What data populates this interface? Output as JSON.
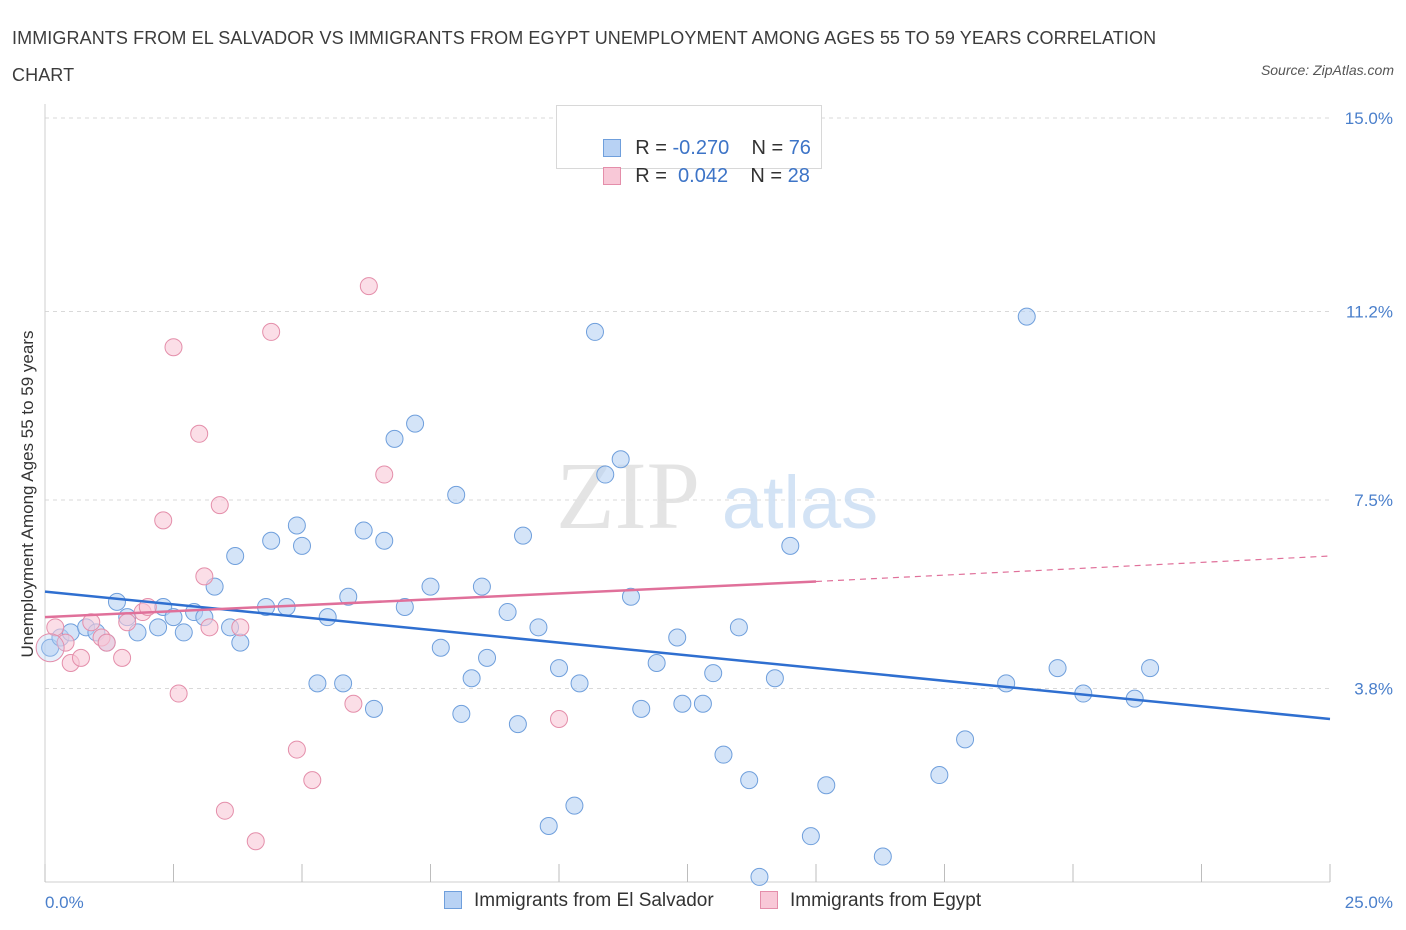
{
  "title": "IMMIGRANTS FROM EL SALVADOR VS IMMIGRANTS FROM EGYPT UNEMPLOYMENT AMONG AGES 55 TO 59 YEARS CORRELATION CHART",
  "source": "Source: ZipAtlas.com",
  "watermark": {
    "zip": "ZIP",
    "atlas": "atlas"
  },
  "legend": {
    "r_label": "R =",
    "n_label": "N =",
    "series1": {
      "r": "-0.270",
      "n": "76"
    },
    "series2": {
      "r": " 0.042",
      "n": "28"
    }
  },
  "colors": {
    "blue_fill": "#b8d2f4",
    "blue_stroke": "#6f9fdc",
    "blue_line": "#2f6fd0",
    "pink_fill": "#f8c8d7",
    "pink_stroke": "#e48eaa",
    "pink_line": "#e0709a",
    "grid": "#d9d9d9",
    "tick_text": "#4a7fcb"
  },
  "chart_data": {
    "type": "scatter",
    "title": "IMMIGRANTS FROM EL SALVADOR VS IMMIGRANTS FROM EGYPT UNEMPLOYMENT AMONG AGES 55 TO 59 YEARS CORRELATION CHART",
    "xlabel": "",
    "ylabel": "Unemployment Among Ages 55 to 59 years",
    "xlim": [
      0,
      25
    ],
    "ylim": [
      0,
      15
    ],
    "x_tick_labels": [
      "0.0%",
      "25.0%"
    ],
    "y_tick_labels": [
      "15.0%",
      "11.2%",
      "7.5%",
      "3.8%"
    ],
    "y_tick_values": [
      15.0,
      11.2,
      7.5,
      3.8
    ],
    "grid": true,
    "legend_position": "bottom-center",
    "series": [
      {
        "name": "Immigrants from El Salvador",
        "R": -0.27,
        "N": 76,
        "trend": {
          "x": [
            0,
            25
          ],
          "y": [
            5.7,
            3.2
          ]
        },
        "points": [
          [
            0.1,
            4.6
          ],
          [
            0.3,
            4.8
          ],
          [
            0.5,
            4.9
          ],
          [
            0.8,
            5.0
          ],
          [
            1.0,
            4.9
          ],
          [
            1.4,
            5.5
          ],
          [
            1.6,
            5.2
          ],
          [
            1.8,
            4.9
          ],
          [
            2.3,
            5.4
          ],
          [
            2.2,
            5.0
          ],
          [
            2.5,
            5.2
          ],
          [
            2.7,
            4.9
          ],
          [
            2.9,
            5.3
          ],
          [
            3.1,
            5.2
          ],
          [
            3.3,
            5.8
          ],
          [
            3.6,
            5.0
          ],
          [
            3.8,
            4.7
          ],
          [
            3.7,
            6.4
          ],
          [
            4.4,
            6.7
          ],
          [
            4.7,
            5.4
          ],
          [
            4.3,
            5.4
          ],
          [
            4.9,
            7.0
          ],
          [
            5.0,
            6.6
          ],
          [
            5.3,
            3.9
          ],
          [
            5.5,
            5.2
          ],
          [
            5.8,
            3.9
          ],
          [
            5.9,
            5.6
          ],
          [
            6.2,
            6.9
          ],
          [
            6.4,
            3.4
          ],
          [
            6.6,
            6.7
          ],
          [
            6.8,
            8.7
          ],
          [
            7.0,
            5.4
          ],
          [
            7.2,
            9.0
          ],
          [
            7.5,
            5.8
          ],
          [
            7.7,
            4.6
          ],
          [
            8.0,
            7.6
          ],
          [
            8.1,
            3.3
          ],
          [
            8.3,
            4.0
          ],
          [
            8.5,
            5.8
          ],
          [
            8.6,
            4.4
          ],
          [
            9.0,
            5.3
          ],
          [
            9.2,
            3.1
          ],
          [
            9.3,
            6.8
          ],
          [
            9.6,
            5.0
          ],
          [
            9.8,
            1.1
          ],
          [
            10.0,
            4.2
          ],
          [
            10.3,
            1.5
          ],
          [
            10.4,
            3.9
          ],
          [
            10.7,
            10.8
          ],
          [
            10.9,
            8.0
          ],
          [
            11.2,
            8.3
          ],
          [
            11.4,
            5.6
          ],
          [
            11.6,
            3.4
          ],
          [
            11.9,
            4.3
          ],
          [
            12.3,
            4.8
          ],
          [
            12.4,
            3.5
          ],
          [
            12.8,
            3.5
          ],
          [
            13.0,
            4.1
          ],
          [
            13.2,
            2.5
          ],
          [
            13.5,
            5.0
          ],
          [
            13.7,
            2.0
          ],
          [
            14.2,
            4.0
          ],
          [
            14.5,
            6.6
          ],
          [
            14.9,
            0.9
          ],
          [
            15.2,
            1.9
          ],
          [
            16.3,
            0.5
          ],
          [
            17.4,
            2.1
          ],
          [
            17.9,
            2.8
          ],
          [
            18.7,
            3.9
          ],
          [
            19.1,
            11.1
          ],
          [
            19.7,
            4.2
          ],
          [
            20.2,
            3.7
          ],
          [
            21.2,
            3.6
          ],
          [
            21.5,
            4.2
          ],
          [
            13.9,
            0.1
          ],
          [
            1.2,
            4.7
          ]
        ]
      },
      {
        "name": "Immigrants from Egypt",
        "R": 0.042,
        "N": 28,
        "trend": {
          "x": [
            0,
            15
          ],
          "y": [
            5.2,
            5.9
          ]
        },
        "trend_dashed_to": {
          "x": 25,
          "y": 6.4
        },
        "points": [
          [
            0.2,
            5.0
          ],
          [
            0.4,
            4.7
          ],
          [
            0.5,
            4.3
          ],
          [
            0.7,
            4.4
          ],
          [
            0.9,
            5.1
          ],
          [
            1.1,
            4.8
          ],
          [
            1.2,
            4.7
          ],
          [
            1.5,
            4.4
          ],
          [
            1.6,
            5.1
          ],
          [
            1.9,
            5.3
          ],
          [
            2.0,
            5.4
          ],
          [
            2.3,
            7.1
          ],
          [
            2.5,
            10.5
          ],
          [
            2.6,
            3.7
          ],
          [
            3.0,
            8.8
          ],
          [
            3.1,
            6.0
          ],
          [
            3.2,
            5.0
          ],
          [
            3.4,
            7.4
          ],
          [
            3.5,
            1.4
          ],
          [
            3.8,
            5.0
          ],
          [
            4.1,
            0.8
          ],
          [
            4.4,
            10.8
          ],
          [
            4.9,
            2.6
          ],
          [
            5.2,
            2.0
          ],
          [
            6.0,
            3.5
          ],
          [
            6.3,
            11.7
          ],
          [
            6.6,
            8.0
          ],
          [
            10.0,
            3.2
          ]
        ]
      }
    ]
  },
  "bottom_legend": {
    "series1": "Immigrants from El Salvador",
    "series2": "Immigrants from Egypt"
  }
}
